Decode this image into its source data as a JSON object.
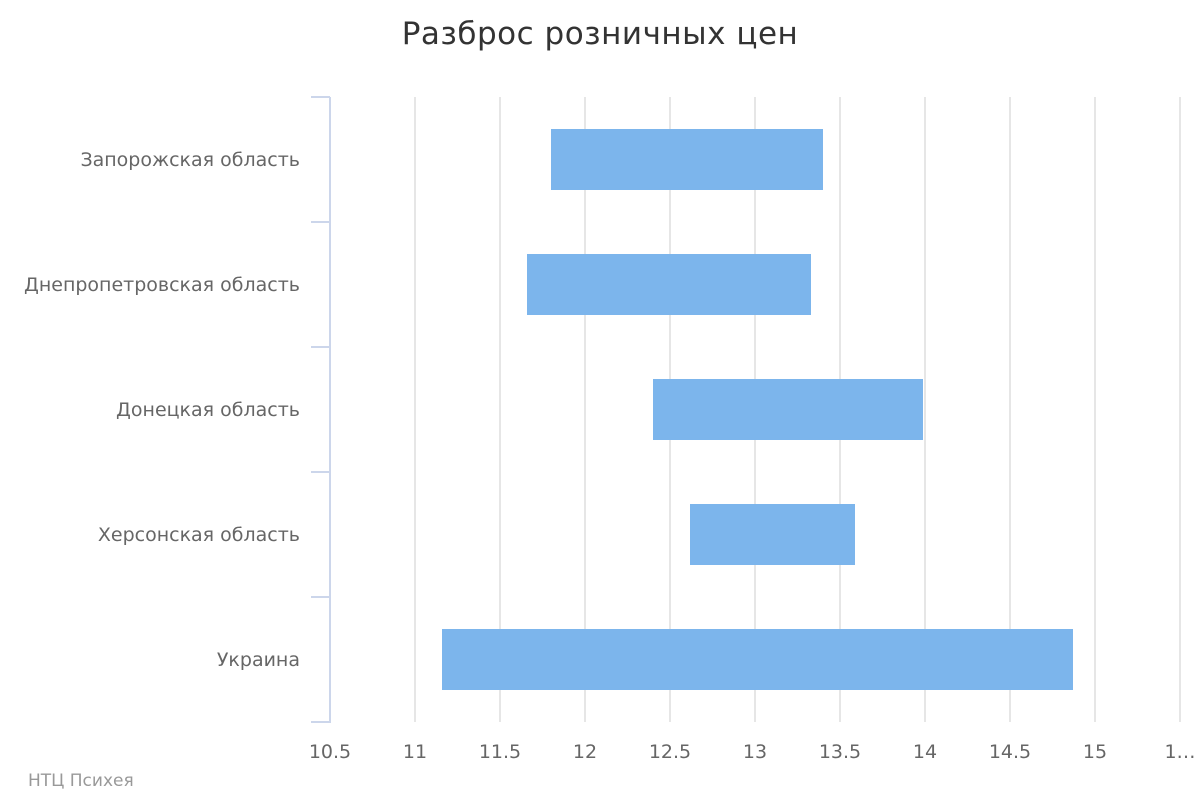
{
  "title": "Разброс розничных цен",
  "credits": "НТЦ Психея",
  "colors": {
    "bar": "#7cb5ec",
    "axis_line": "#ccd6eb",
    "gridline": "#e6e6e6",
    "title_text": "#333333",
    "axis_label_text": "#666666",
    "credits_text": "#999999",
    "background": "#ffffff"
  },
  "chart_data": {
    "type": "bar",
    "subtype": "columnrange",
    "orientation": "horizontal",
    "title": "Разброс розничных цен",
    "legend": "none",
    "grid": true,
    "categories": [
      "Запорожская область",
      "Днепропетровская область",
      "Донецкая область",
      "Херсонская область",
      "Украина"
    ],
    "series": [
      {
        "data": [
          {
            "low": 11.8,
            "high": 13.4
          },
          {
            "low": 11.66,
            "high": 13.33
          },
          {
            "low": 12.4,
            "high": 13.99
          },
          {
            "low": 12.62,
            "high": 13.59
          },
          {
            "low": 11.16,
            "high": 14.87
          }
        ]
      }
    ],
    "value_axis": {
      "min": 10.5,
      "max": 15.5,
      "tick_interval": 0.5,
      "tick_labels": [
        "10.5",
        "11",
        "11.5",
        "12",
        "12.5",
        "13",
        "13.5",
        "14",
        "14.5",
        "15",
        "1…"
      ]
    }
  }
}
